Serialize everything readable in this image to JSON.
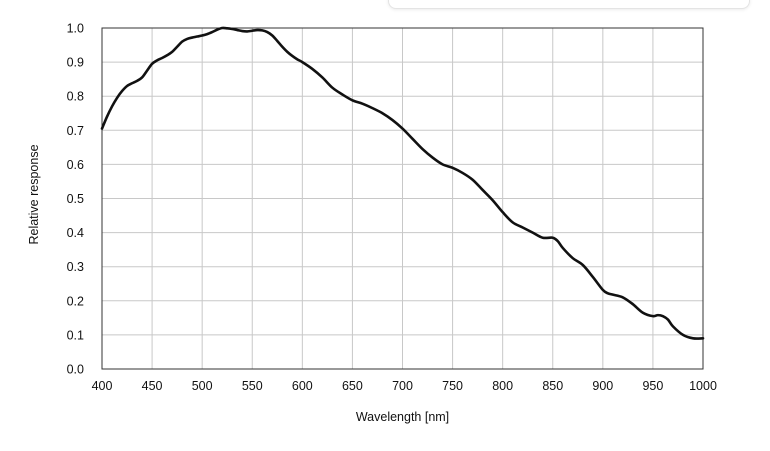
{
  "chart_data": {
    "type": "line",
    "xlabel": "Wavelength [nm]",
    "ylabel": "Relative response",
    "xlim": [
      400,
      1000
    ],
    "ylim": [
      0.0,
      1.0
    ],
    "x_ticks": [
      "400",
      "450",
      "500",
      "550",
      "600",
      "650",
      "700",
      "750",
      "800",
      "850",
      "900",
      "950",
      "1000"
    ],
    "y_ticks": [
      "0.0",
      "0.1",
      "0.2",
      "0.3",
      "0.4",
      "0.5",
      "0.6",
      "0.7",
      "0.8",
      "0.9",
      "1.0"
    ],
    "grid": true,
    "line_color": "#111111",
    "series": [
      {
        "x": [
          400,
          405,
          410,
          415,
          420,
          425,
          430,
          435,
          440,
          445,
          450,
          455,
          460,
          465,
          470,
          475,
          480,
          485,
          490,
          495,
          500,
          505,
          510,
          515,
          520,
          525,
          530,
          535,
          540,
          545,
          550,
          555,
          560,
          565,
          570,
          575,
          580,
          585,
          590,
          595,
          600,
          610,
          620,
          630,
          640,
          650,
          660,
          670,
          680,
          690,
          700,
          710,
          720,
          730,
          740,
          750,
          760,
          770,
          780,
          790,
          800,
          810,
          820,
          830,
          840,
          850,
          855,
          860,
          870,
          880,
          890,
          900,
          905,
          910,
          920,
          930,
          940,
          950,
          955,
          960,
          965,
          970,
          980,
          990,
          1000
        ],
        "y": [
          0.705,
          0.74,
          0.77,
          0.795,
          0.815,
          0.83,
          0.838,
          0.845,
          0.855,
          0.875,
          0.895,
          0.905,
          0.912,
          0.92,
          0.93,
          0.945,
          0.96,
          0.968,
          0.972,
          0.975,
          0.978,
          0.982,
          0.988,
          0.995,
          1.0,
          0.999,
          0.997,
          0.994,
          0.991,
          0.99,
          0.992,
          0.994,
          0.993,
          0.988,
          0.978,
          0.962,
          0.945,
          0.93,
          0.918,
          0.908,
          0.9,
          0.88,
          0.855,
          0.825,
          0.805,
          0.788,
          0.778,
          0.765,
          0.75,
          0.73,
          0.705,
          0.675,
          0.645,
          0.62,
          0.6,
          0.59,
          0.575,
          0.555,
          0.525,
          0.495,
          0.46,
          0.43,
          0.415,
          0.4,
          0.385,
          0.385,
          0.375,
          0.355,
          0.325,
          0.305,
          0.27,
          0.232,
          0.222,
          0.218,
          0.21,
          0.19,
          0.165,
          0.155,
          0.158,
          0.155,
          0.145,
          0.125,
          0.1,
          0.09,
          0.09
        ]
      }
    ]
  }
}
